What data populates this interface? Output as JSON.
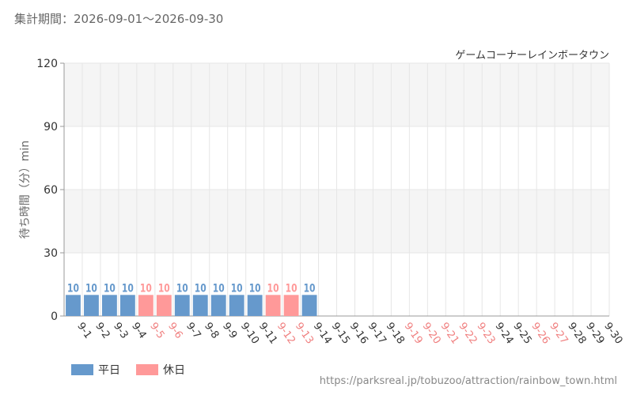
{
  "header": {
    "period_label": "集計期間：2026-09-01～2026-09-30"
  },
  "footer": {
    "source_url": "https://parksreal.jp/tobuzoo/attraction/rainbow_town.html"
  },
  "colors": {
    "weekday": "#6699cc",
    "holiday": "#ff9999",
    "grid": "#e6e6e6",
    "band": "#f5f5f5"
  },
  "chart_data": {
    "type": "bar",
    "title": "ゲームコーナーレインボータウン",
    "ylabel": "待ち時間（分）min",
    "ylim": [
      0,
      120
    ],
    "yticks": [
      0,
      30,
      60,
      90,
      120
    ],
    "legend": [
      {
        "name": "平日",
        "color": "#6699cc"
      },
      {
        "name": "休日",
        "color": "#ff9999"
      }
    ],
    "categories": [
      "9-1",
      "9-2",
      "9-3",
      "9-4",
      "9-5",
      "9-6",
      "9-7",
      "9-8",
      "9-9",
      "9-10",
      "9-11",
      "9-12",
      "9-13",
      "9-14",
      "9-15",
      "9-16",
      "9-17",
      "9-18",
      "9-19",
      "9-20",
      "9-21",
      "9-22",
      "9-23",
      "9-24",
      "9-25",
      "9-26",
      "9-27",
      "9-28",
      "9-29",
      "9-30"
    ],
    "holiday": [
      false,
      false,
      false,
      false,
      true,
      true,
      false,
      false,
      false,
      false,
      false,
      true,
      true,
      false,
      false,
      false,
      false,
      false,
      true,
      true,
      true,
      true,
      true,
      false,
      false,
      true,
      true,
      false,
      false,
      false
    ],
    "values": [
      10,
      10,
      10,
      10,
      10,
      10,
      10,
      10,
      10,
      10,
      10,
      10,
      10,
      10,
      null,
      null,
      null,
      null,
      null,
      null,
      null,
      null,
      null,
      null,
      null,
      null,
      null,
      null,
      null,
      null
    ]
  }
}
